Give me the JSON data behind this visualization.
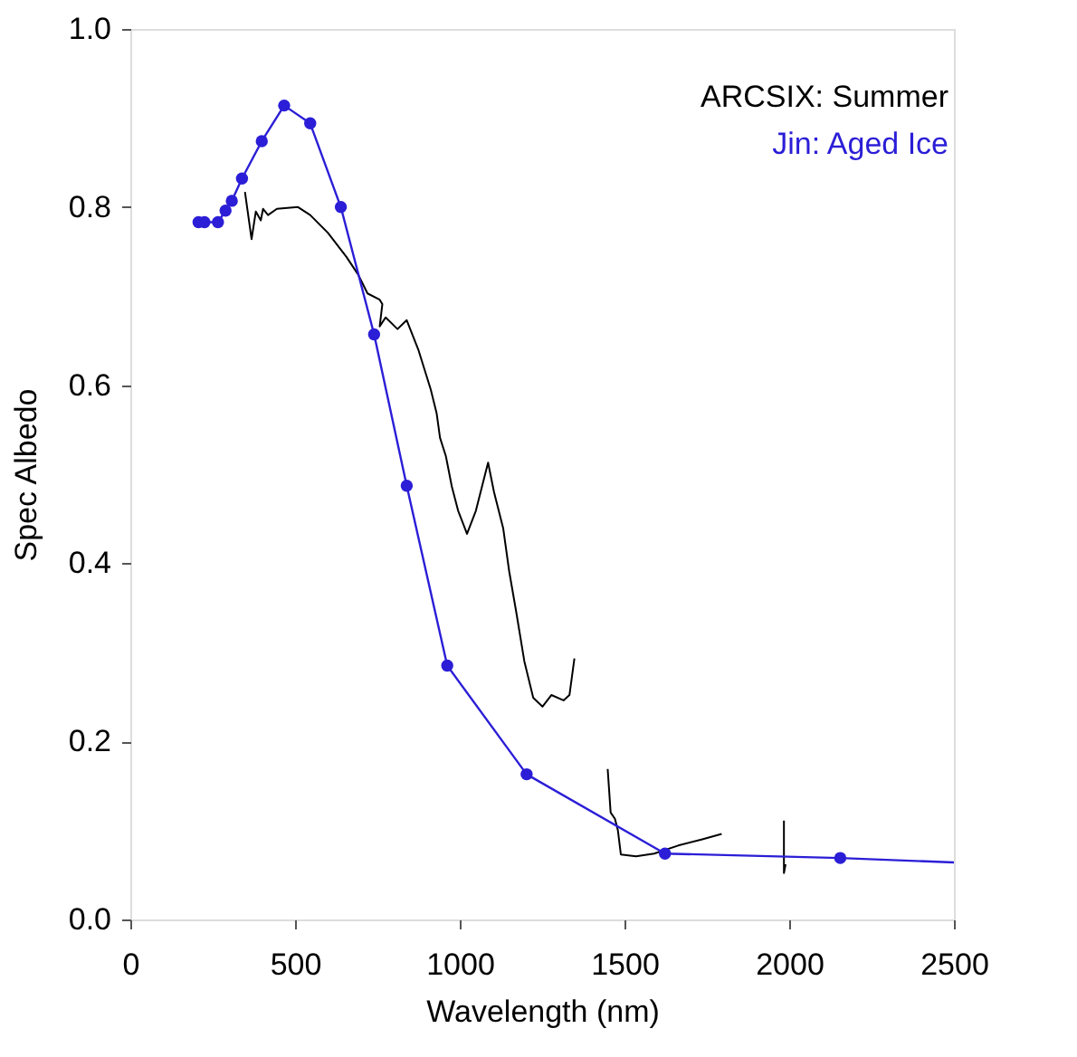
{
  "chart_data": {
    "type": "line",
    "xlabel": "Wavelength (nm)",
    "ylabel": "Spec Albedo",
    "xlim": [
      0,
      2500
    ],
    "xticks": [
      0,
      500,
      1000,
      1500,
      2000,
      2500
    ],
    "ylim": [
      0,
      1
    ],
    "yticks": [
      {
        "value": 0,
        "label": "0.0"
      },
      0.2,
      0.4,
      0.6,
      0.8,
      {
        "value": 1,
        "label": "1.0"
      }
    ],
    "grid": false,
    "legend": "top right",
    "series": [
      {
        "name": "ARCSIX: Summer",
        "color": "#000000",
        "marker": "none",
        "x": [
          348,
          368,
          381,
          396,
          403,
          418,
          445,
          509,
          546,
          600,
          656,
          692,
          720,
          757,
          765,
          757,
          775,
          811,
          839,
          875,
          912,
          930,
          940,
          958,
          976,
          995,
          1022,
          1049,
          1077,
          1086,
          1104,
          1132,
          1150,
          1172,
          1196,
          1223,
          1251,
          1278,
          1315,
          1333,
          1348,
          1400,
          1449,
          1458,
          1471,
          1480,
          1489,
          1535,
          1590,
          1663,
          1736,
          1795,
          1900,
          1984,
          1984,
          1989
        ],
        "values": [
          0.817,
          0.764,
          0.795,
          0.785,
          0.798,
          0.791,
          0.798,
          0.8,
          0.791,
          0.771,
          0.744,
          0.724,
          0.703,
          0.696,
          0.691,
          0.666,
          0.676,
          0.663,
          0.673,
          0.639,
          0.595,
          0.568,
          0.541,
          0.52,
          0.486,
          0.459,
          0.433,
          0.459,
          0.5,
          0.513,
          0.48,
          0.439,
          0.391,
          0.344,
          0.29,
          0.249,
          0.239,
          0.252,
          0.246,
          0.252,
          0.293,
          null,
          0.169,
          0.12,
          0.113,
          0.1,
          0.073,
          0.071,
          0.074,
          0.083,
          0.09,
          0.096,
          null,
          0.111,
          0.052,
          0.062
        ]
      },
      {
        "name": "Jin: Aged Ice",
        "color": "#2b1ed6",
        "marker": "circle",
        "x": [
          207,
          225,
          266,
          289,
          308,
          339,
          399,
          467,
          546,
          639,
          740,
          839,
          962,
          1203,
          1623,
          2155
        ],
        "values": [
          0.783,
          0.783,
          0.783,
          0.796,
          0.807,
          0.832,
          0.874,
          0.914,
          0.894,
          0.8,
          0.657,
          0.487,
          0.285,
          0.163,
          0.074,
          0.069
        ]
      },
      {
        "color": "#2b1ed6",
        "marker": "none",
        "x": [
          2155,
          2500
        ],
        "values": [
          0.069,
          0.064
        ]
      }
    ]
  }
}
